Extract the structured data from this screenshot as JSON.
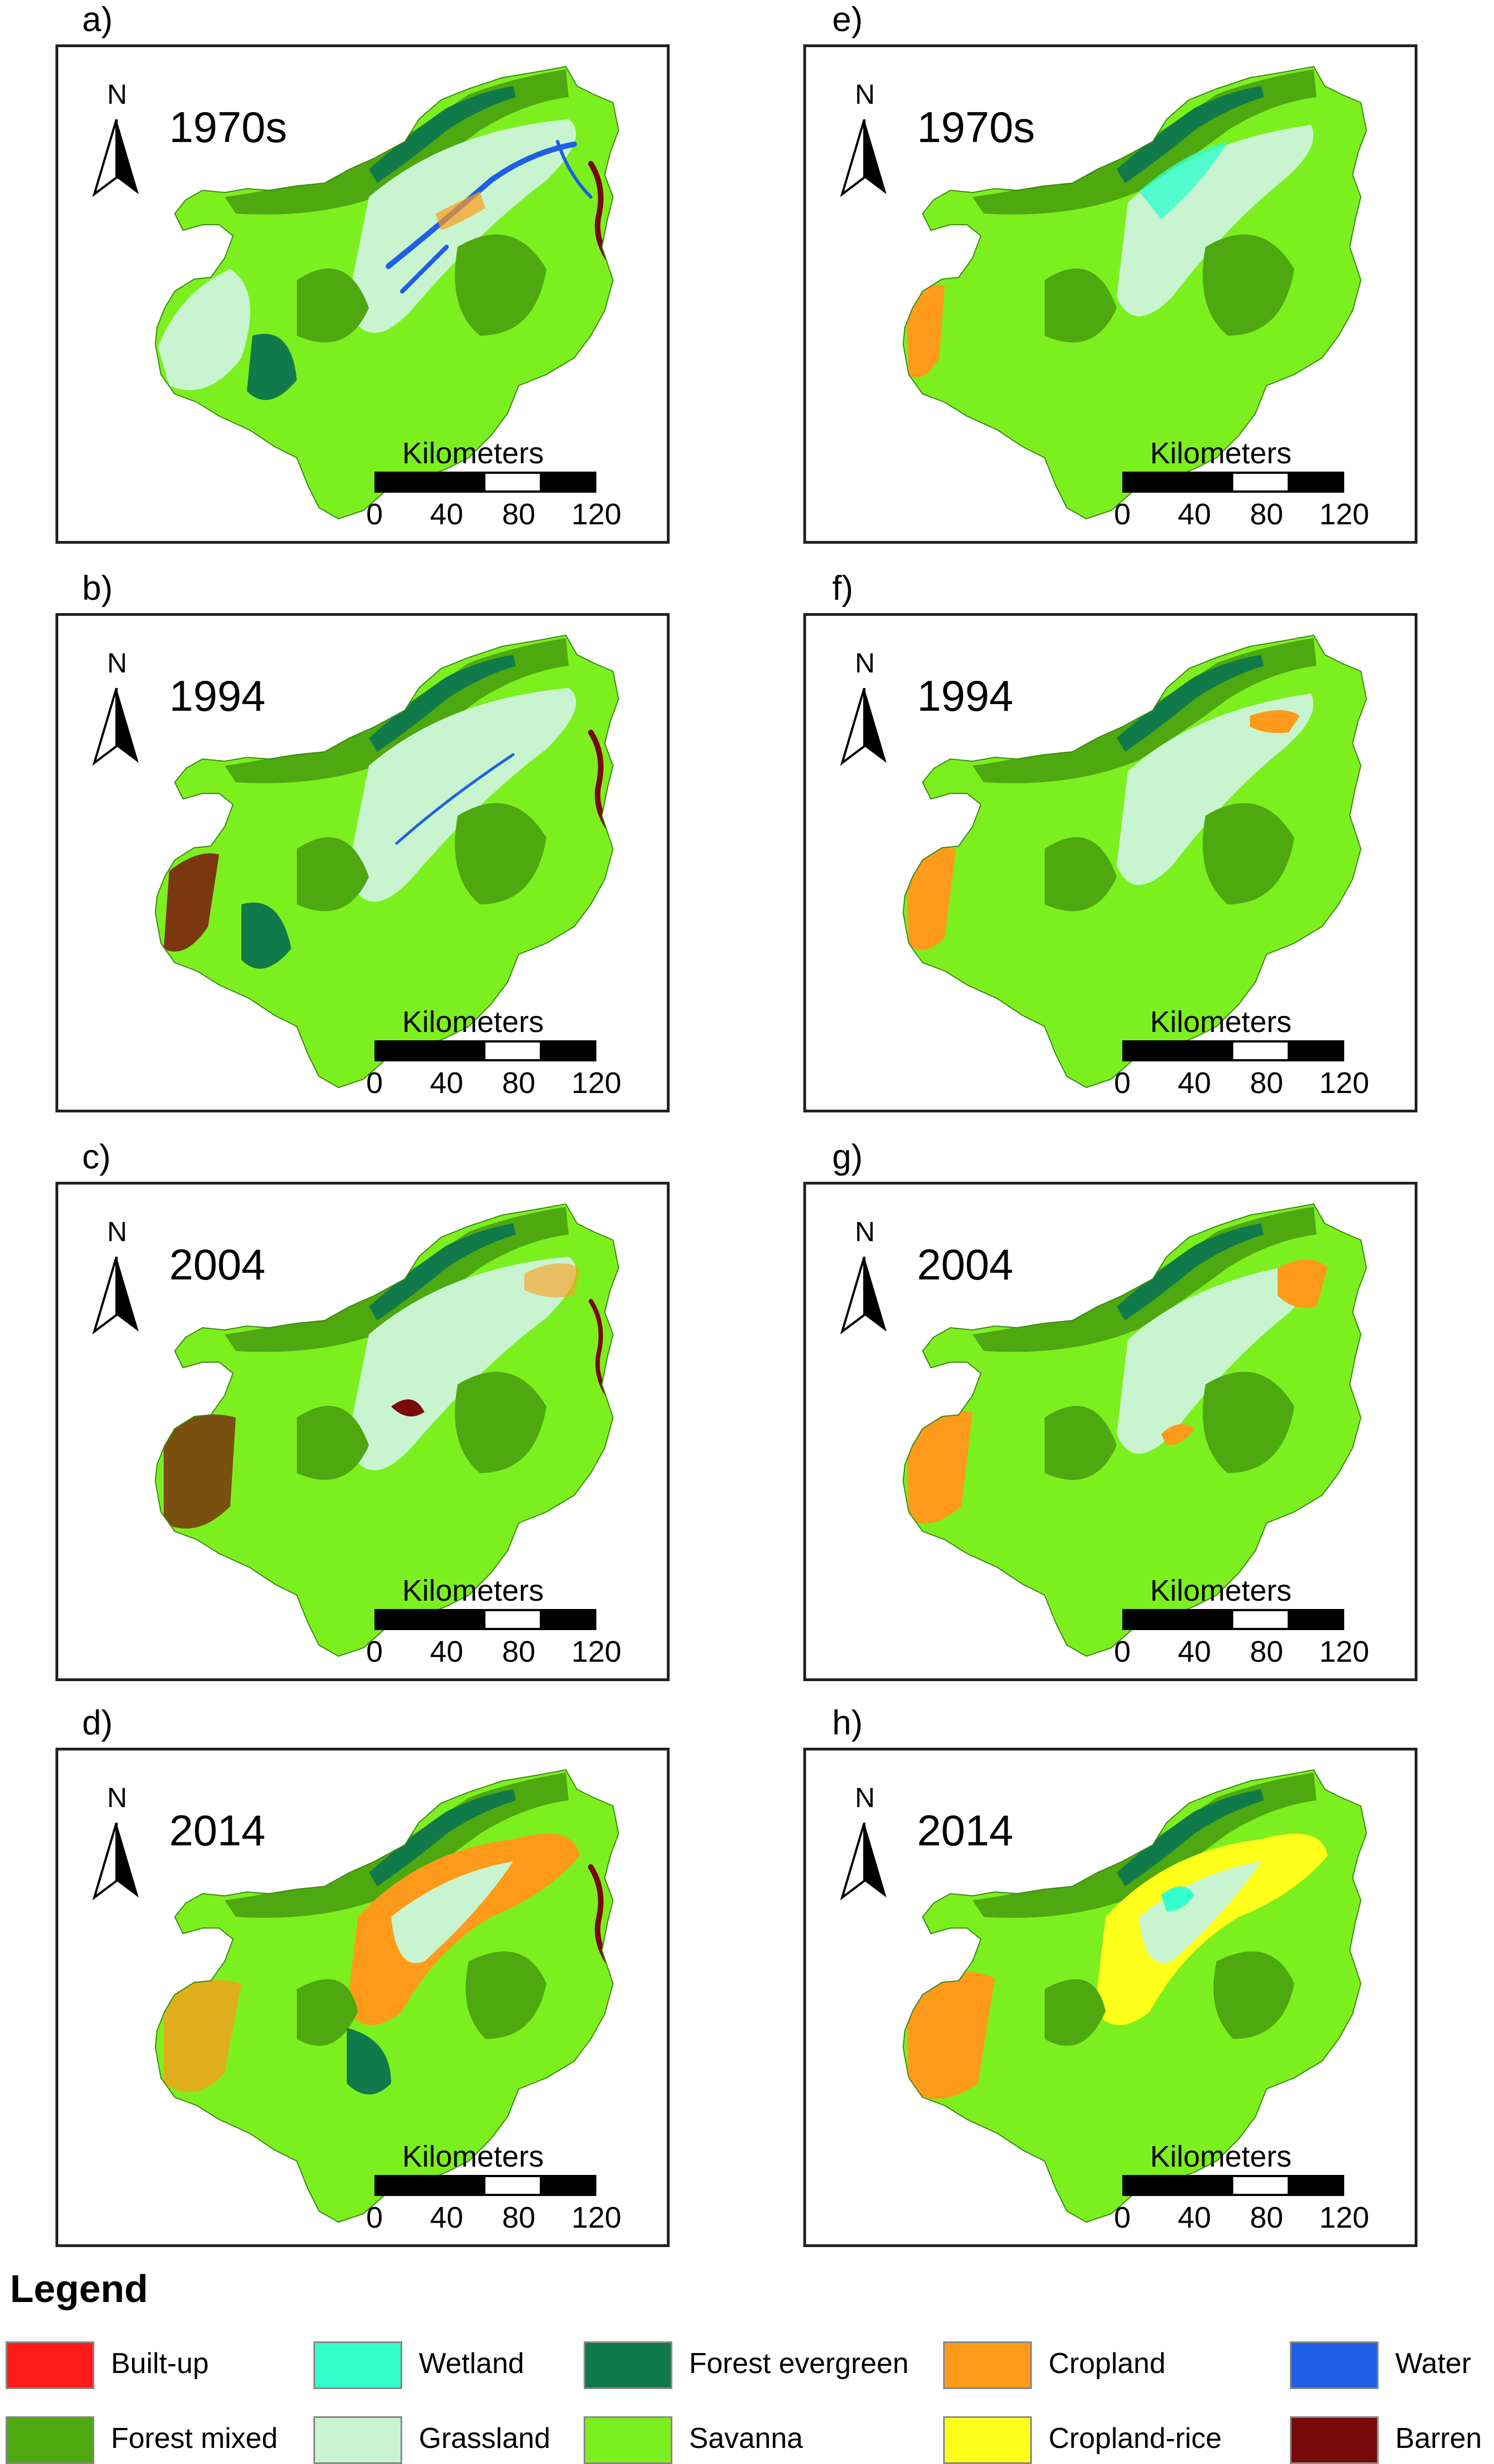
{
  "panels": [
    {
      "letter": "a)",
      "year": "1970s",
      "style": "lulc1970"
    },
    {
      "letter": "b)",
      "year": "1994",
      "style": "lulc1994"
    },
    {
      "letter": "c)",
      "year": "2004",
      "style": "lulc2004"
    },
    {
      "letter": "d)",
      "year": "2014",
      "style": "lulc2014"
    },
    {
      "letter": "e)",
      "year": "1970s",
      "style": "crop1970"
    },
    {
      "letter": "f)",
      "year": "1994",
      "style": "crop1994"
    },
    {
      "letter": "g)",
      "year": "2004",
      "style": "crop2004"
    },
    {
      "letter": "h)",
      "year": "2014",
      "style": "crop2014"
    }
  ],
  "north_label": "N",
  "scale": {
    "title": "Kilometers",
    "ticks": [
      "0",
      "40",
      "80",
      "120"
    ]
  },
  "legend": {
    "title": "Legend",
    "items": [
      {
        "label": "Built-up",
        "color": "#ff1a1a"
      },
      {
        "label": "Wetland",
        "color": "#33ffcc"
      },
      {
        "label": "Forest evergreen",
        "color": "#117a4a"
      },
      {
        "label": "Cropland",
        "color": "#ff9a1a"
      },
      {
        "label": "Water",
        "color": "#1f5fe6"
      },
      {
        "label": "Forest mixed",
        "color": "#4ea80f"
      },
      {
        "label": "Grassland",
        "color": "#c8f5cf"
      },
      {
        "label": "Savanna",
        "color": "#7cf01f"
      },
      {
        "label": "Cropland-rice",
        "color": "#ffff1a"
      },
      {
        "label": "Barren",
        "color": "#7a0a0a"
      }
    ]
  }
}
